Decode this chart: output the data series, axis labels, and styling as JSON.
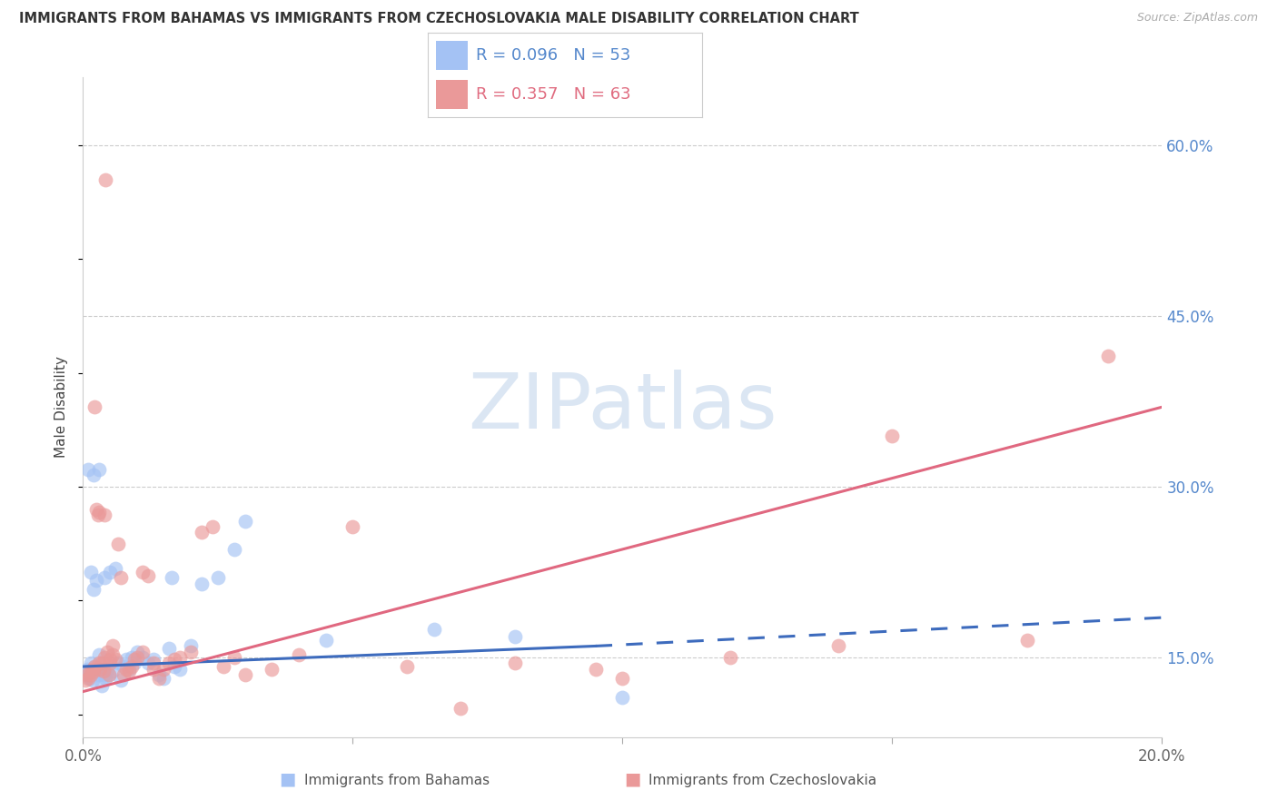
{
  "title": "IMMIGRANTS FROM BAHAMAS VS IMMIGRANTS FROM CZECHOSLOVAKIA MALE DISABILITY CORRELATION CHART",
  "source_text": "Source: ZipAtlas.com",
  "ylabel": "Male Disability",
  "xlabel_ticks": [
    "0.0%",
    "",
    "",
    "",
    "20.0%"
  ],
  "xlabel_vals": [
    0.0,
    5.0,
    10.0,
    15.0,
    20.0
  ],
  "ylabel_ticks": [
    "15.0%",
    "30.0%",
    "45.0%",
    "60.0%"
  ],
  "ylabel_vals": [
    15.0,
    30.0,
    45.0,
    60.0
  ],
  "xmin": 0.0,
  "xmax": 20.0,
  "ymin": 8.0,
  "ymax": 66.0,
  "bahamas_color": "#a4c2f4",
  "czech_color": "#ea9999",
  "bahamas_line_color": "#3d6bbd",
  "czech_line_color": "#e06880",
  "bahamas_R": 0.096,
  "bahamas_N": 53,
  "czech_R": 0.357,
  "czech_N": 63,
  "watermark_color": "#ccdcee",
  "legend_label_bahamas": "Immigrants from Bahamas",
  "legend_label_czech": "Immigrants from Czechoslovakia",
  "bahamas_x": [
    0.05,
    0.08,
    0.1,
    0.12,
    0.15,
    0.18,
    0.2,
    0.22,
    0.25,
    0.28,
    0.3,
    0.32,
    0.35,
    0.38,
    0.4,
    0.42,
    0.45,
    0.48,
    0.5,
    0.55,
    0.6,
    0.65,
    0.7,
    0.75,
    0.8,
    0.85,
    0.9,
    0.95,
    1.0,
    1.1,
    1.2,
    1.3,
    1.4,
    1.5,
    1.6,
    1.65,
    1.7,
    1.8,
    2.0,
    2.2,
    2.5,
    2.8,
    3.0,
    0.15,
    0.2,
    0.25,
    0.3,
    4.5,
    6.5,
    8.0,
    10.0,
    0.1,
    0.35
  ],
  "bahamas_y": [
    13.5,
    14.0,
    13.8,
    13.2,
    14.5,
    13.0,
    31.0,
    14.2,
    14.0,
    13.5,
    31.5,
    13.8,
    14.0,
    13.5,
    22.0,
    13.2,
    14.0,
    13.5,
    22.5,
    13.8,
    22.8,
    14.5,
    13.0,
    14.2,
    14.8,
    14.0,
    15.0,
    14.5,
    15.5,
    15.0,
    14.5,
    14.8,
    13.5,
    13.2,
    15.8,
    22.0,
    14.2,
    14.0,
    16.0,
    21.5,
    22.0,
    24.5,
    27.0,
    22.5,
    21.0,
    21.8,
    15.2,
    16.5,
    17.5,
    16.8,
    11.5,
    31.5,
    12.5
  ],
  "czech_x": [
    0.05,
    0.08,
    0.1,
    0.12,
    0.15,
    0.18,
    0.2,
    0.22,
    0.25,
    0.28,
    0.3,
    0.32,
    0.35,
    0.38,
    0.4,
    0.42,
    0.45,
    0.48,
    0.5,
    0.55,
    0.6,
    0.65,
    0.7,
    0.75,
    0.8,
    0.85,
    0.9,
    0.95,
    1.0,
    1.1,
    1.2,
    1.3,
    1.4,
    1.5,
    1.6,
    1.7,
    1.8,
    2.0,
    2.2,
    2.4,
    2.6,
    2.8,
    3.0,
    3.5,
    4.0,
    0.22,
    0.3,
    0.4,
    0.5,
    1.1,
    1.3,
    5.0,
    6.0,
    7.0,
    8.0,
    9.5,
    10.0,
    12.0,
    14.0,
    15.0,
    17.5,
    19.0,
    0.55
  ],
  "czech_y": [
    13.0,
    13.5,
    13.2,
    13.8,
    13.5,
    14.0,
    13.8,
    14.2,
    28.0,
    27.5,
    27.8,
    14.0,
    14.5,
    13.8,
    15.0,
    57.0,
    15.5,
    13.5,
    14.5,
    15.2,
    14.8,
    25.0,
    22.0,
    13.5,
    14.0,
    13.8,
    14.2,
    14.8,
    15.0,
    22.5,
    22.2,
    14.5,
    13.2,
    14.0,
    14.5,
    14.8,
    15.0,
    15.5,
    26.0,
    26.5,
    14.2,
    15.0,
    13.5,
    14.0,
    15.2,
    37.0,
    14.5,
    27.5,
    14.8,
    15.5,
    14.0,
    26.5,
    14.2,
    10.5,
    14.5,
    14.0,
    13.2,
    15.0,
    16.0,
    34.5,
    16.5,
    41.5,
    16.0
  ]
}
